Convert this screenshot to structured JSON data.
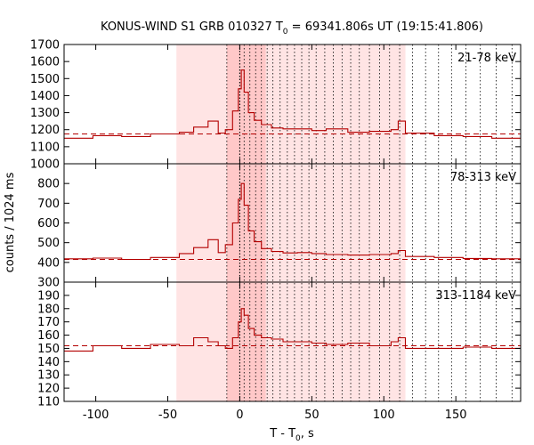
{
  "chart_data": {
    "type": "line",
    "title_pre": "KONUS-WIND S1 GRB 010327 T",
    "title_sub": "0",
    "title_post": " = 69341.806s UT (19:15:41.806)",
    "xlabel_pre": "T - T",
    "xlabel_sub": "0",
    "xlabel_post": ", s",
    "ylabel": "counts / 1024 ms",
    "xlim": [
      -122,
      195
    ],
    "xticks": [
      -100,
      -50,
      0,
      50,
      100,
      150
    ],
    "xtick_labels": [
      "-100",
      "-50",
      "0",
      "50",
      "100",
      "150"
    ],
    "shaded_regions": [
      {
        "x0": -44,
        "x1": 115,
        "style": "light"
      },
      {
        "x0": -9,
        "x1": 18,
        "style": "dark"
      }
    ],
    "trigger_line_x": 0,
    "dotted_lines_x": [
      -9,
      3,
      7,
      11,
      15,
      19,
      23,
      28,
      33,
      38,
      43,
      48,
      53,
      59,
      65,
      71,
      77,
      83,
      90,
      97,
      104,
      111,
      120,
      129,
      138,
      147,
      157,
      167,
      178,
      189
    ],
    "panels": [
      {
        "band_label": "21-78 keV",
        "ylim": [
          1000,
          1700
        ],
        "yticks": [
          1000,
          1100,
          1200,
          1300,
          1400,
          1500,
          1600,
          1700
        ],
        "ytick_labels": [
          "1000",
          "1100",
          "1200",
          "1300",
          "1400",
          "1500",
          "1600",
          "1700"
        ],
        "background_level": 1175,
        "bin_edges": [
          -122,
          -102,
          -82,
          -62,
          -42,
          -32,
          -22,
          -15,
          -10,
          -5,
          -1,
          1,
          3,
          6,
          10,
          15,
          22,
          30,
          40,
          50,
          60,
          75,
          90,
          105,
          110,
          115,
          135,
          155,
          175,
          195
        ],
        "values": [
          1150,
          1165,
          1160,
          1175,
          1185,
          1215,
          1250,
          1180,
          1200,
          1310,
          1440,
          1550,
          1420,
          1300,
          1255,
          1230,
          1210,
          1205,
          1205,
          1195,
          1205,
          1185,
          1190,
          1200,
          1250,
          1180,
          1165,
          1160,
          1150
        ]
      },
      {
        "band_label": "78-313 keV",
        "ylim": [
          300,
          900
        ],
        "yticks": [
          300,
          400,
          500,
          600,
          700,
          800
        ],
        "ytick_labels": [
          "300",
          "400",
          "500",
          "600",
          "700",
          "800"
        ],
        "background_level": 415,
        "bin_edges": [
          -122,
          -102,
          -82,
          -62,
          -42,
          -32,
          -22,
          -15,
          -10,
          -5,
          -1,
          1,
          3,
          6,
          10,
          15,
          22,
          30,
          40,
          50,
          60,
          75,
          90,
          105,
          110,
          115,
          135,
          155,
          175,
          195
        ],
        "values": [
          418,
          422,
          415,
          425,
          445,
          475,
          515,
          450,
          490,
          600,
          720,
          800,
          690,
          560,
          505,
          470,
          455,
          448,
          450,
          445,
          440,
          437,
          440,
          445,
          460,
          430,
          425,
          420,
          418
        ]
      },
      {
        "band_label": "313-1184 keV",
        "ylim": [
          110,
          200
        ],
        "yticks": [
          110,
          120,
          130,
          140,
          150,
          160,
          170,
          180,
          190
        ],
        "ytick_labels": [
          "110",
          "120",
          "130",
          "140",
          "150",
          "160",
          "170",
          "180",
          "190"
        ],
        "background_level": 152,
        "bin_edges": [
          -122,
          -102,
          -82,
          -62,
          -42,
          -32,
          -22,
          -15,
          -10,
          -5,
          -1,
          1,
          3,
          6,
          10,
          15,
          22,
          30,
          40,
          50,
          60,
          75,
          90,
          105,
          110,
          115,
          135,
          155,
          175,
          195
        ],
        "values": [
          148,
          152,
          150,
          153,
          152,
          158,
          155,
          152,
          150,
          158,
          170,
          180,
          175,
          165,
          160,
          158,
          157,
          155,
          155,
          154,
          153,
          154,
          152,
          155,
          158,
          150,
          150,
          151,
          150
        ]
      }
    ]
  }
}
